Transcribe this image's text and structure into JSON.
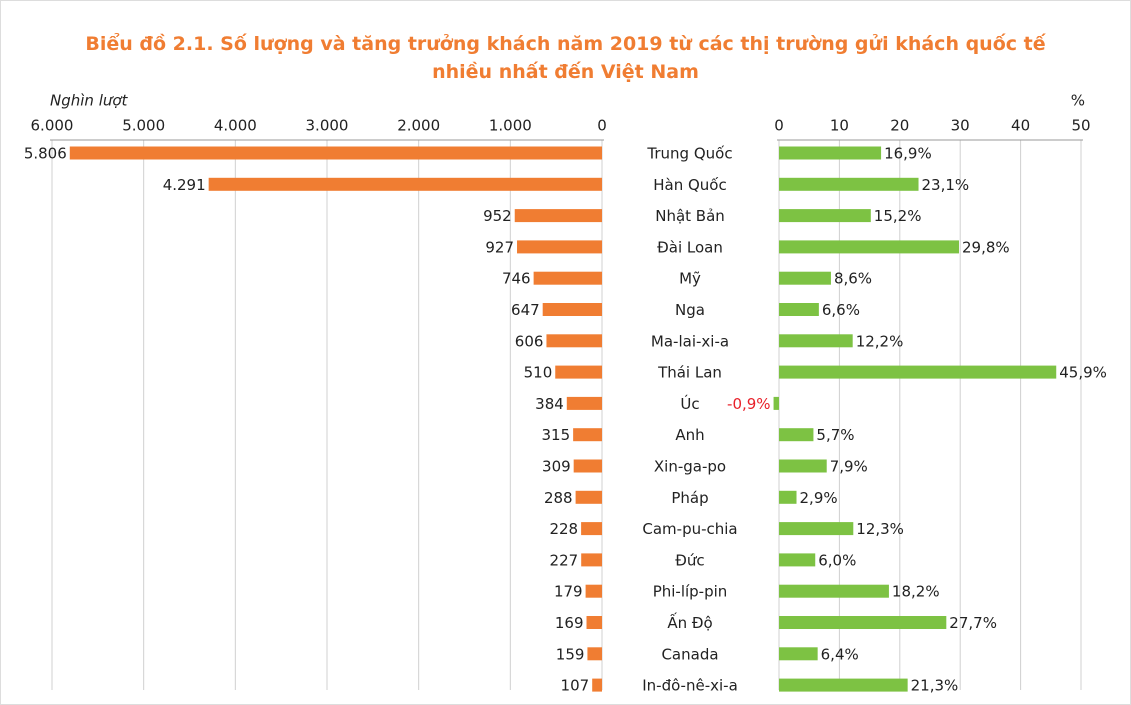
{
  "chart_data": [
    {
      "type": "hbar",
      "title": "Biểu đồ 2.1. Số lượng và tăng trưởng khách năm 2019 từ các thị trường gửi khách quốc tế nhiều nhất đến Việt Nam",
      "xlabel": "Nghìn lượt",
      "categories": [
        "Trung Quốc",
        "Hàn Quốc",
        "Nhật Bản",
        "Đài Loan",
        "Mỹ",
        "Nga",
        "Ma-lai-xi-a",
        "Thái Lan",
        "Úc",
        "Anh",
        "Xin-ga-po",
        "Pháp",
        "Cam-pu-chia",
        "Đức",
        "Phi-líp-pin",
        "Ấn Độ",
        "Canada",
        "In-đô-nê-xi-a"
      ],
      "values": [
        5806,
        4291,
        952,
        927,
        746,
        647,
        606,
        510,
        384,
        315,
        309,
        288,
        228,
        227,
        179,
        169,
        159,
        107
      ],
      "value_labels": [
        "5.806",
        "4.291",
        "952",
        "927",
        "746",
        "647",
        "606",
        "510",
        "384",
        "315",
        "309",
        "288",
        "228",
        "227",
        "179",
        "169",
        "159",
        "107"
      ],
      "color": "#f07d32",
      "xlim": [
        6000,
        0
      ],
      "xticks": [
        {
          "value": 6000,
          "label": "6.000"
        },
        {
          "value": 5000,
          "label": "5.000"
        },
        {
          "value": 4000,
          "label": "4.000"
        },
        {
          "value": 3000,
          "label": "3.000"
        },
        {
          "value": 2000,
          "label": "2.000"
        },
        {
          "value": 1000,
          "label": "1.000"
        },
        0
      ],
      "grid": true
    },
    {
      "type": "hbar",
      "xlabel": "%",
      "values": [
        16.9,
        23.1,
        15.2,
        29.8,
        8.6,
        6.6,
        12.2,
        45.9,
        -0.9,
        5.7,
        7.9,
        2.9,
        12.3,
        6.0,
        18.2,
        27.7,
        6.4,
        21.3
      ],
      "value_labels": [
        "16,9%",
        "23,1%",
        "15,2%",
        "29,8%",
        "8,6%",
        "6,6%",
        "12,2%",
        "45,9%",
        "-0,9%",
        "5,7%",
        "7,9%",
        "2,9%",
        "12,3%",
        "6,0%",
        "18,2%",
        "27,7%",
        "6,4%",
        "21,3%"
      ],
      "color": "#7dc243",
      "negative_label_color": "#e8212a",
      "xlim": [
        0,
        50
      ],
      "xticks": [
        0,
        10,
        20,
        30,
        40,
        50
      ],
      "grid": true
    }
  ]
}
